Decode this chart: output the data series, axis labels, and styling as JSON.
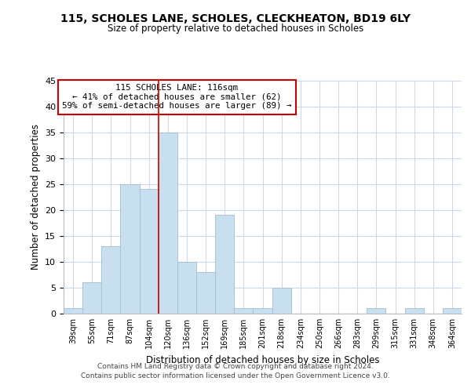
{
  "title1": "115, SCHOLES LANE, SCHOLES, CLECKHEATON, BD19 6LY",
  "title2": "Size of property relative to detached houses in Scholes",
  "xlabel": "Distribution of detached houses by size in Scholes",
  "ylabel": "Number of detached properties",
  "bin_labels": [
    "39sqm",
    "55sqm",
    "71sqm",
    "87sqm",
    "104sqm",
    "120sqm",
    "136sqm",
    "152sqm",
    "169sqm",
    "185sqm",
    "201sqm",
    "218sqm",
    "234sqm",
    "250sqm",
    "266sqm",
    "283sqm",
    "299sqm",
    "315sqm",
    "331sqm",
    "348sqm",
    "364sqm"
  ],
  "bar_heights": [
    1,
    6,
    13,
    25,
    24,
    35,
    10,
    8,
    19,
    1,
    1,
    5,
    0,
    0,
    0,
    0,
    1,
    0,
    1,
    0,
    1
  ],
  "bar_color": "#c8dff0",
  "bar_edge_color": "#a0bfd0",
  "highlight_line_color": "#cc0000",
  "annotation_line1": "115 SCHOLES LANE: 116sqm",
  "annotation_line2": "← 41% of detached houses are smaller (62)",
  "annotation_line3": "59% of semi-detached houses are larger (89) →",
  "annotation_box_edge": "#cc0000",
  "ylim": [
    0,
    45
  ],
  "yticks": [
    0,
    5,
    10,
    15,
    20,
    25,
    30,
    35,
    40,
    45
  ],
  "footer1": "Contains HM Land Registry data © Crown copyright and database right 2024.",
  "footer2": "Contains public sector information licensed under the Open Government Licence v3.0.",
  "bg_color": "#ffffff",
  "grid_color": "#ccd9e8"
}
